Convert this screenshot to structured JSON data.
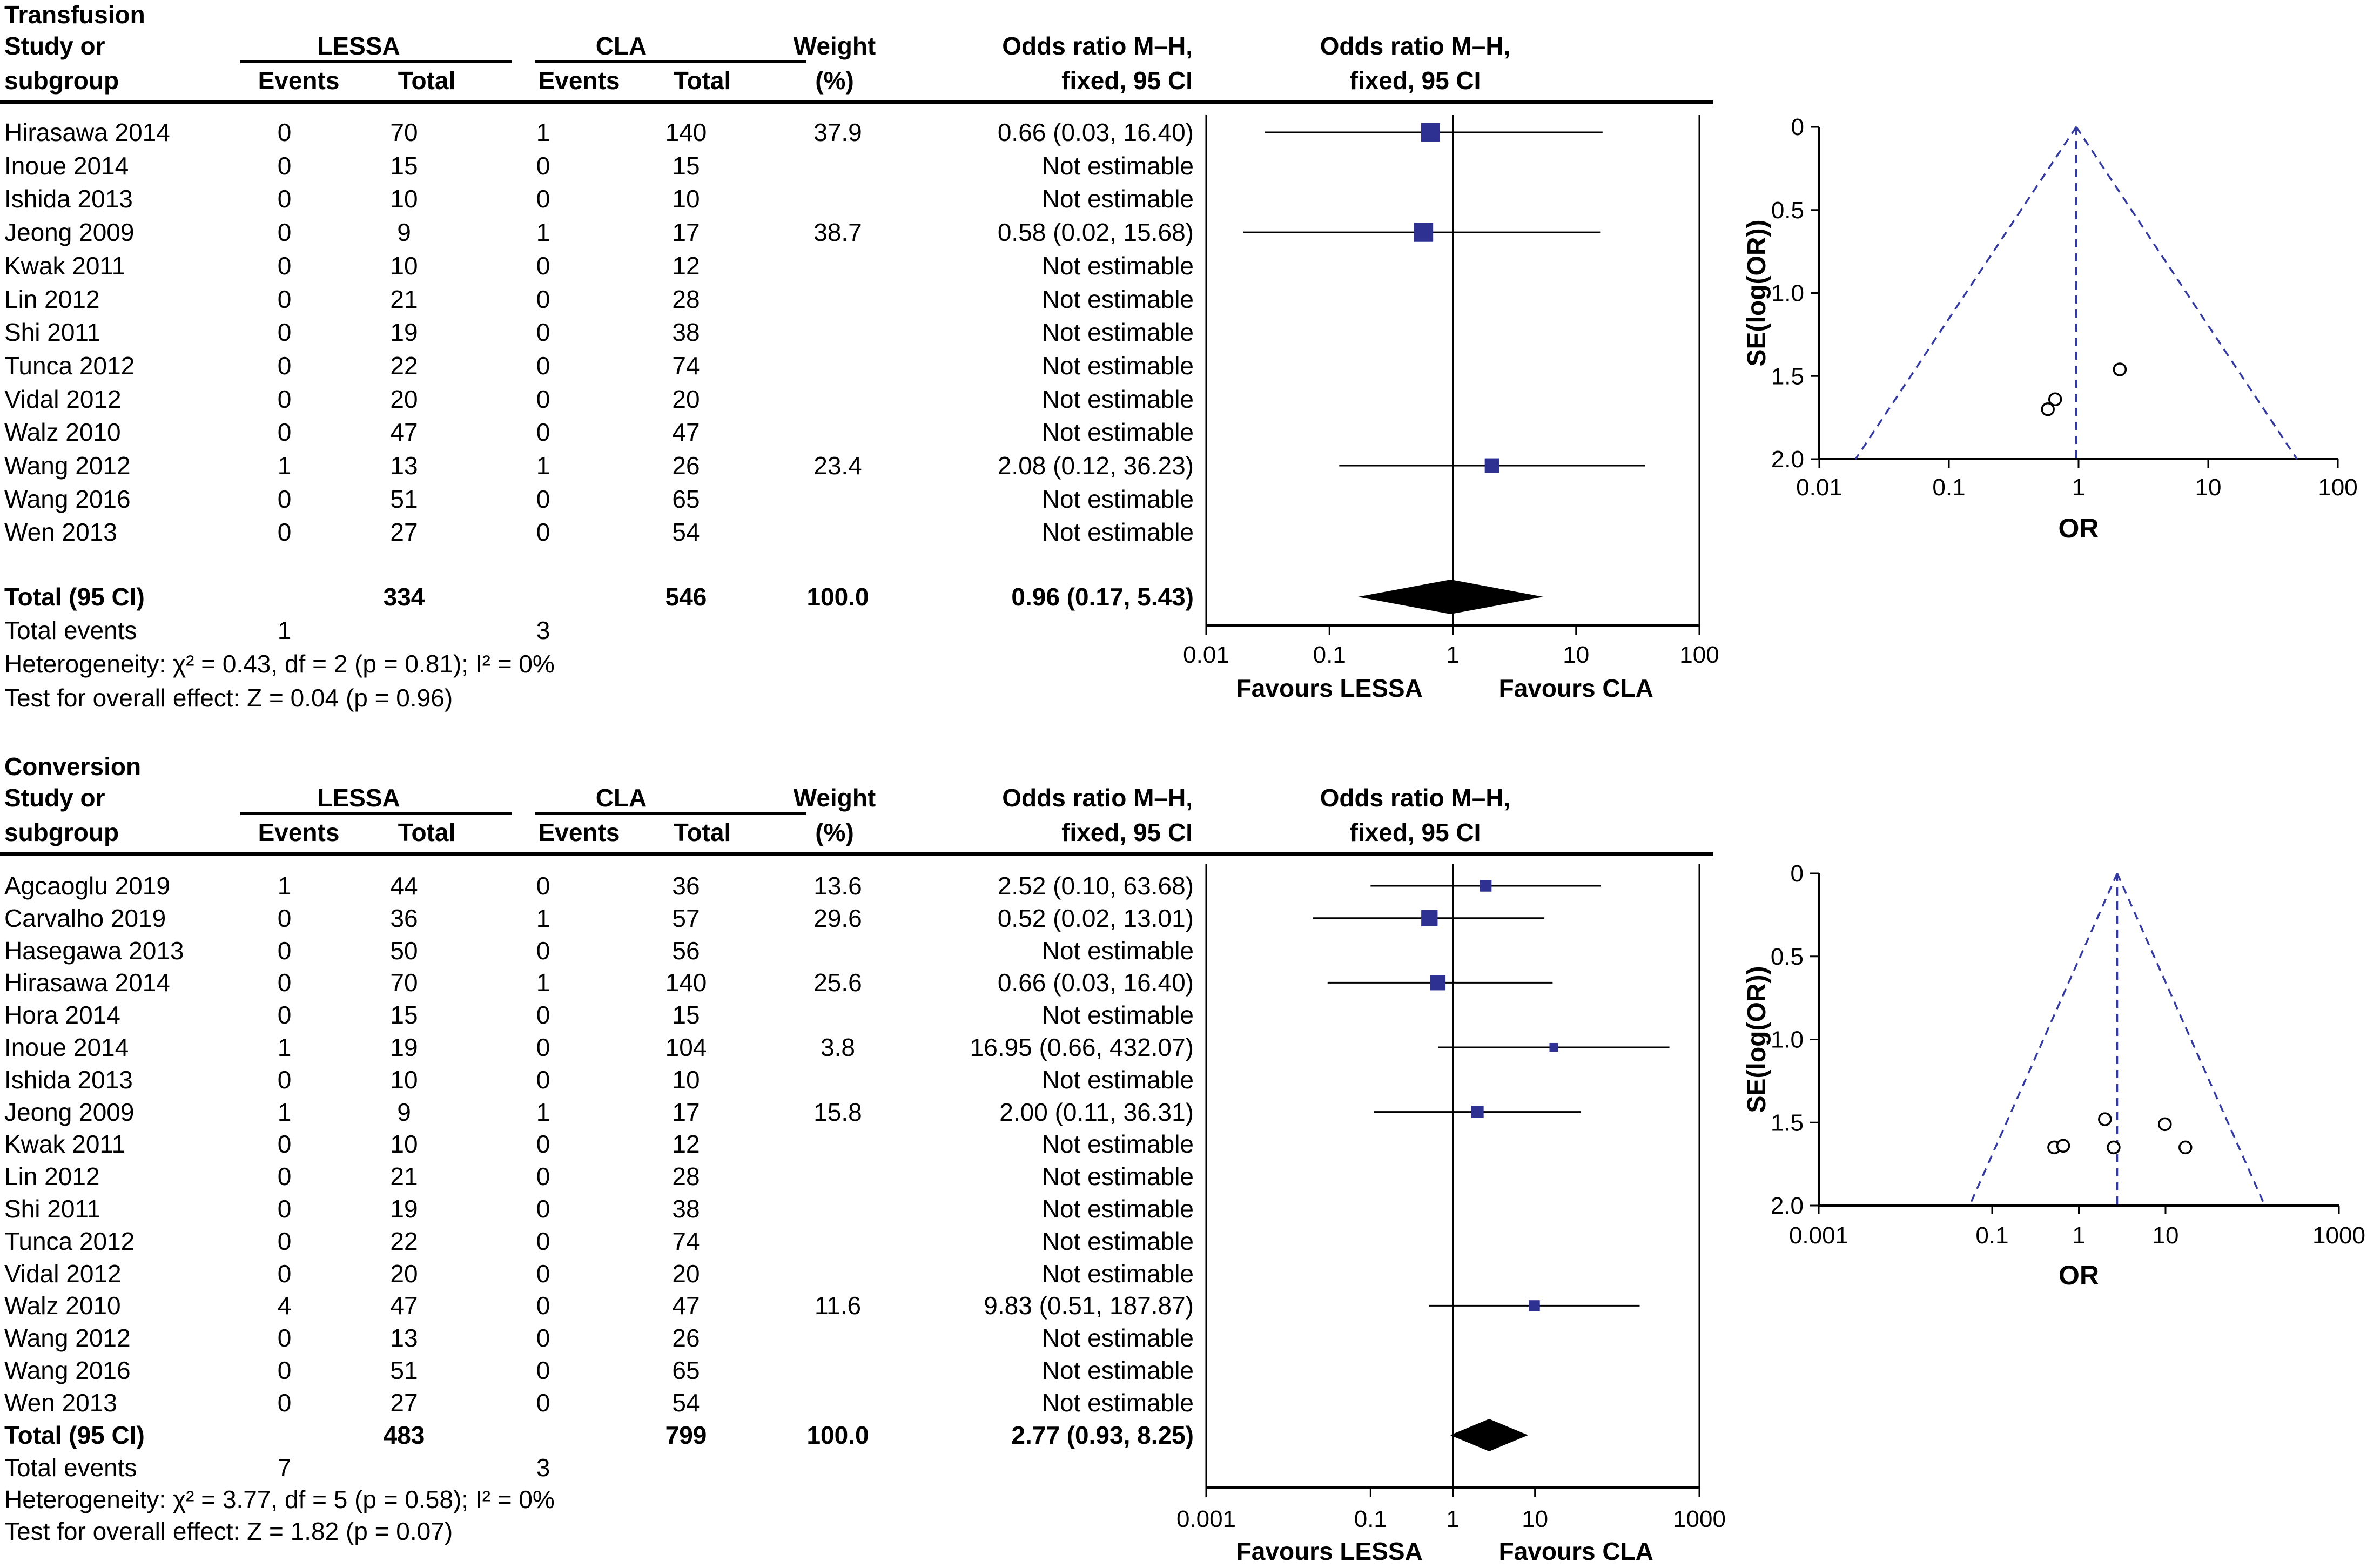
{
  "panels": [
    {
      "title": "Transfusion",
      "header": {
        "study_line1": "Study or",
        "study_line2": "subgroup",
        "group1": "LESSA",
        "group2": "CLA",
        "events": "Events",
        "total": "Total",
        "weight_line1": "Weight",
        "weight_line2": "(%)",
        "or_line1": "Odds ratio M–H,",
        "or_line2": "fixed, 95 CI",
        "plot_line1": "Odds ratio M–H,",
        "plot_line2": "fixed, 95 CI"
      },
      "rows": [
        {
          "study": "Hirasawa 2014",
          "e1": "0",
          "t1": "70",
          "e2": "1",
          "t2": "140",
          "weight": "37.9",
          "or": "0.66 (0.03, 16.40)"
        },
        {
          "study": "Inoue 2014",
          "e1": "0",
          "t1": "15",
          "e2": "0",
          "t2": "15",
          "weight": "",
          "or": "Not estimable"
        },
        {
          "study": "Ishida 2013",
          "e1": "0",
          "t1": "10",
          "e2": "0",
          "t2": "10",
          "weight": "",
          "or": "Not estimable"
        },
        {
          "study": "Jeong 2009",
          "e1": "0",
          "t1": "9",
          "e2": "1",
          "t2": "17",
          "weight": "38.7",
          "or": "0.58 (0.02, 15.68)"
        },
        {
          "study": "Kwak 2011",
          "e1": "0",
          "t1": "10",
          "e2": "0",
          "t2": "12",
          "weight": "",
          "or": "Not estimable"
        },
        {
          "study": "Lin 2012",
          "e1": "0",
          "t1": "21",
          "e2": "0",
          "t2": "28",
          "weight": "",
          "or": "Not estimable"
        },
        {
          "study": "Shi 2011",
          "e1": "0",
          "t1": "19",
          "e2": "0",
          "t2": "38",
          "weight": "",
          "or": "Not estimable"
        },
        {
          "study": "Tunca 2012",
          "e1": "0",
          "t1": "22",
          "e2": "0",
          "t2": "74",
          "weight": "",
          "or": "Not estimable"
        },
        {
          "study": "Vidal 2012",
          "e1": "0",
          "t1": "20",
          "e2": "0",
          "t2": "20",
          "weight": "",
          "or": "Not estimable"
        },
        {
          "study": "Walz 2010",
          "e1": "0",
          "t1": "47",
          "e2": "0",
          "t2": "47",
          "weight": "",
          "or": "Not estimable"
        },
        {
          "study": "Wang 2012",
          "e1": "1",
          "t1": "13",
          "e2": "1",
          "t2": "26",
          "weight": "23.4",
          "or": "2.08 (0.12, 36.23)"
        },
        {
          "study": "Wang 2016",
          "e1": "0",
          "t1": "51",
          "e2": "0",
          "t2": "65",
          "weight": "",
          "or": "Not estimable"
        },
        {
          "study": "Wen 2013",
          "e1": "0",
          "t1": "27",
          "e2": "0",
          "t2": "54",
          "weight": "",
          "or": "Not estimable"
        }
      ],
      "total_row": {
        "label": "Total (95 CI)",
        "t1": "334",
        "t2": "546",
        "weight": "100.0",
        "or": "0.96 (0.17, 5.43)"
      },
      "total_events": {
        "label": "Total events",
        "e1": "1",
        "e2": "3"
      },
      "heterogeneity": "Heterogeneity: χ² = 0.43, df = 2 (p = 0.81); I² = 0%",
      "overall_effect": "Test for overall effect: Z = 0.04 (p = 0.96)"
    },
    {
      "title": "Conversion",
      "header": {
        "study_line1": "Study or",
        "study_line2": "subgroup",
        "group1": "LESSA",
        "group2": "CLA",
        "events": "Events",
        "total": "Total",
        "weight_line1": "Weight",
        "weight_line2": "(%)",
        "or_line1": "Odds ratio M–H,",
        "or_line2": "fixed, 95 CI",
        "plot_line1": "Odds ratio M–H,",
        "plot_line2": "fixed, 95 CI"
      },
      "rows": [
        {
          "study": "Agcaoglu 2019",
          "e1": "1",
          "t1": "44",
          "e2": "0",
          "t2": "36",
          "weight": "13.6",
          "or": "2.52 (0.10, 63.68)"
        },
        {
          "study": "Carvalho 2019",
          "e1": "0",
          "t1": "36",
          "e2": "1",
          "t2": "57",
          "weight": "29.6",
          "or": "0.52 (0.02, 13.01)"
        },
        {
          "study": "Hasegawa 2013",
          "e1": "0",
          "t1": "50",
          "e2": "0",
          "t2": "56",
          "weight": "",
          "or": "Not estimable"
        },
        {
          "study": "Hirasawa 2014",
          "e1": "0",
          "t1": "70",
          "e2": "1",
          "t2": "140",
          "weight": "25.6",
          "or": "0.66 (0.03, 16.40)"
        },
        {
          "study": "Hora 2014",
          "e1": "0",
          "t1": "15",
          "e2": "0",
          "t2": "15",
          "weight": "",
          "or": "Not estimable"
        },
        {
          "study": "Inoue 2014",
          "e1": "1",
          "t1": "19",
          "e2": "0",
          "t2": "104",
          "weight": "3.8",
          "or": "16.95 (0.66, 432.07)"
        },
        {
          "study": "Ishida 2013",
          "e1": "0",
          "t1": "10",
          "e2": "0",
          "t2": "10",
          "weight": "",
          "or": "Not estimable"
        },
        {
          "study": "Jeong 2009",
          "e1": "1",
          "t1": "9",
          "e2": "1",
          "t2": "17",
          "weight": "15.8",
          "or": "2.00 (0.11, 36.31)"
        },
        {
          "study": "Kwak 2011",
          "e1": "0",
          "t1": "10",
          "e2": "0",
          "t2": "12",
          "weight": "",
          "or": "Not estimable"
        },
        {
          "study": "Lin 2012",
          "e1": "0",
          "t1": "21",
          "e2": "0",
          "t2": "28",
          "weight": "",
          "or": "Not estimable"
        },
        {
          "study": "Shi 2011",
          "e1": "0",
          "t1": "19",
          "e2": "0",
          "t2": "38",
          "weight": "",
          "or": "Not estimable"
        },
        {
          "study": "Tunca 2012",
          "e1": "0",
          "t1": "22",
          "e2": "0",
          "t2": "74",
          "weight": "",
          "or": "Not estimable"
        },
        {
          "study": "Vidal 2012",
          "e1": "0",
          "t1": "20",
          "e2": "0",
          "t2": "20",
          "weight": "",
          "or": "Not estimable"
        },
        {
          "study": "Walz 2010",
          "e1": "4",
          "t1": "47",
          "e2": "0",
          "t2": "47",
          "weight": "11.6",
          "or": "9.83 (0.51, 187.87)"
        },
        {
          "study": "Wang 2012",
          "e1": "0",
          "t1": "13",
          "e2": "0",
          "t2": "26",
          "weight": "",
          "or": "Not estimable"
        },
        {
          "study": "Wang 2016",
          "e1": "0",
          "t1": "51",
          "e2": "0",
          "t2": "65",
          "weight": "",
          "or": "Not estimable"
        },
        {
          "study": "Wen 2013",
          "e1": "0",
          "t1": "27",
          "e2": "0",
          "t2": "54",
          "weight": "",
          "or": "Not estimable"
        }
      ],
      "total_row": {
        "label": "Total (95 CI)",
        "t1": "483",
        "t2": "799",
        "weight": "100.0",
        "or": "2.77 (0.93, 8.25)"
      },
      "total_events": {
        "label": "Total events",
        "e1": "7",
        "e2": "3"
      },
      "heterogeneity": "Heterogeneity: χ² = 3.77, df = 5 (p = 0.58); I² = 0%",
      "overall_effect": "Test for overall effect: Z = 1.82 (p = 0.07)"
    }
  ],
  "chart_data": [
    {
      "type": "forest",
      "panel": "Transfusion",
      "x_ticks": [
        "0.01",
        "0.1",
        "1",
        "10",
        "100"
      ],
      "favours_left": "Favours LESSA",
      "favours_right": "Favours CLA",
      "studies": [
        {
          "name": "Hirasawa 2014",
          "row": 0,
          "or": 0.66,
          "lo": 0.03,
          "hi": 16.4,
          "weight": 37.9
        },
        {
          "name": "Jeong 2009",
          "row": 3,
          "or": 0.58,
          "lo": 0.02,
          "hi": 15.68,
          "weight": 38.7
        },
        {
          "name": "Wang 2012",
          "row": 10,
          "or": 2.08,
          "lo": 0.12,
          "hi": 36.23,
          "weight": 23.4
        }
      ],
      "total": {
        "or": 0.96,
        "lo": 0.17,
        "hi": 5.43
      }
    },
    {
      "type": "funnel",
      "panel": "Transfusion",
      "xlabel": "OR",
      "ylabel": "SE(log(OR))",
      "x_ticks": [
        "0.01",
        "0.1",
        "1",
        "10",
        "100"
      ],
      "y_ticks": [
        "0",
        "0.5",
        "1.0",
        "1.5",
        "2.0"
      ],
      "center_or": 0.96,
      "points": [
        {
          "or": 0.66,
          "se": 1.64
        },
        {
          "or": 0.58,
          "se": 1.7
        },
        {
          "or": 2.08,
          "se": 1.46
        }
      ]
    },
    {
      "type": "forest",
      "panel": "Conversion",
      "x_ticks": [
        "0.001",
        "0.1",
        "1",
        "10",
        "1000"
      ],
      "favours_left": "Favours LESSA",
      "favours_right": "Favours CLA",
      "studies": [
        {
          "name": "Agcaoglu 2019",
          "row": 0,
          "or": 2.52,
          "lo": 0.1,
          "hi": 63.68,
          "weight": 13.6
        },
        {
          "name": "Carvalho 2019",
          "row": 1,
          "or": 0.52,
          "lo": 0.02,
          "hi": 13.01,
          "weight": 29.6
        },
        {
          "name": "Hirasawa 2014",
          "row": 3,
          "or": 0.66,
          "lo": 0.03,
          "hi": 16.4,
          "weight": 25.6
        },
        {
          "name": "Inoue 2014",
          "row": 5,
          "or": 16.95,
          "lo": 0.66,
          "hi": 432.07,
          "weight": 3.8
        },
        {
          "name": "Jeong 2009",
          "row": 7,
          "or": 2.0,
          "lo": 0.11,
          "hi": 36.31,
          "weight": 15.8
        },
        {
          "name": "Walz 2010",
          "row": 13,
          "or": 9.83,
          "lo": 0.51,
          "hi": 187.87,
          "weight": 11.6
        }
      ],
      "total": {
        "or": 2.77,
        "lo": 0.93,
        "hi": 8.25
      }
    },
    {
      "type": "funnel",
      "panel": "Conversion",
      "xlabel": "OR",
      "ylabel": "SE(log(OR))",
      "x_ticks": [
        "0.001",
        "0.1",
        "1",
        "10",
        "1000"
      ],
      "y_ticks": [
        "0",
        "0.5",
        "1.0",
        "1.5",
        "2.0"
      ],
      "center_or": 2.77,
      "points": [
        {
          "or": 0.52,
          "se": 1.65
        },
        {
          "or": 0.66,
          "se": 1.64
        },
        {
          "or": 2.52,
          "se": 1.65
        },
        {
          "or": 2.0,
          "se": 1.48
        },
        {
          "or": 9.83,
          "se": 1.51
        },
        {
          "or": 16.95,
          "se": 1.65
        }
      ]
    }
  ]
}
